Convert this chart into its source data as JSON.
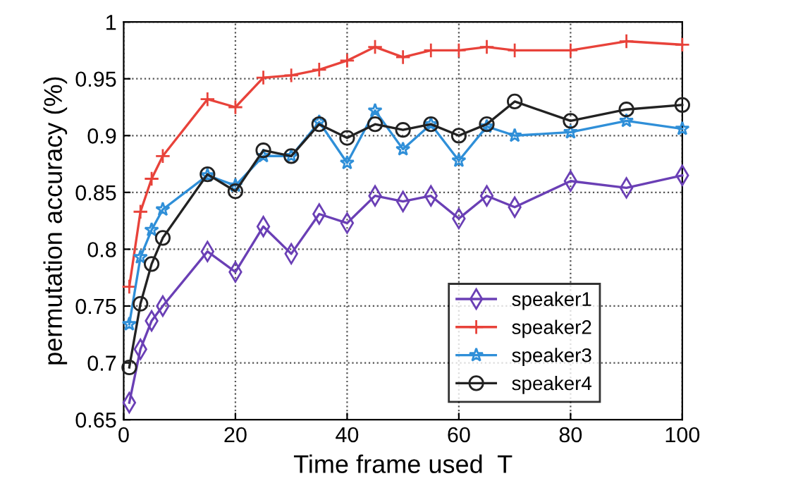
{
  "chart_data": {
    "type": "line",
    "xlabel": "Time frame used  T",
    "ylabel": "permutation accuracy (%)",
    "x": [
      1,
      3,
      5,
      7,
      15,
      20,
      25,
      30,
      35,
      40,
      45,
      50,
      55,
      60,
      65,
      70,
      80,
      90,
      100
    ],
    "series": [
      {
        "name": "speaker1",
        "color": "#6a3fb5",
        "marker": "diamond",
        "values": [
          0.665,
          0.712,
          0.737,
          0.75,
          0.798,
          0.78,
          0.82,
          0.796,
          0.831,
          0.823,
          0.847,
          0.842,
          0.847,
          0.827,
          0.847,
          0.837,
          0.86,
          0.854,
          0.865
        ]
      },
      {
        "name": "speaker2",
        "color": "#e8423a",
        "marker": "plus",
        "values": [
          0.767,
          0.833,
          0.862,
          0.882,
          0.932,
          0.925,
          0.951,
          0.953,
          0.958,
          0.966,
          0.978,
          0.969,
          0.975,
          0.975,
          0.978,
          0.975,
          0.975,
          0.983,
          0.98
        ]
      },
      {
        "name": "speaker3",
        "color": "#2f8fd8",
        "marker": "star",
        "values": [
          0.734,
          0.793,
          0.817,
          0.835,
          0.865,
          0.856,
          0.882,
          0.882,
          0.912,
          0.876,
          0.922,
          0.888,
          0.91,
          0.878,
          0.908,
          0.9,
          0.903,
          0.913,
          0.906
        ]
      },
      {
        "name": "speaker4",
        "color": "#222222",
        "marker": "circle",
        "values": [
          0.696,
          0.752,
          0.787,
          0.81,
          0.866,
          0.851,
          0.887,
          0.882,
          0.91,
          0.898,
          0.91,
          0.905,
          0.91,
          0.9,
          0.91,
          0.93,
          0.913,
          0.923,
          0.927
        ]
      }
    ],
    "xlim": [
      0,
      100
    ],
    "xticks": [
      0,
      20,
      40,
      60,
      80,
      100
    ],
    "ylim": [
      0.65,
      1
    ],
    "yticks": [
      0.65,
      0.7,
      0.75,
      0.8,
      0.85,
      0.9,
      0.95,
      1
    ],
    "grid": true,
    "legend": "bottom right",
    "line_style": "solid"
  }
}
